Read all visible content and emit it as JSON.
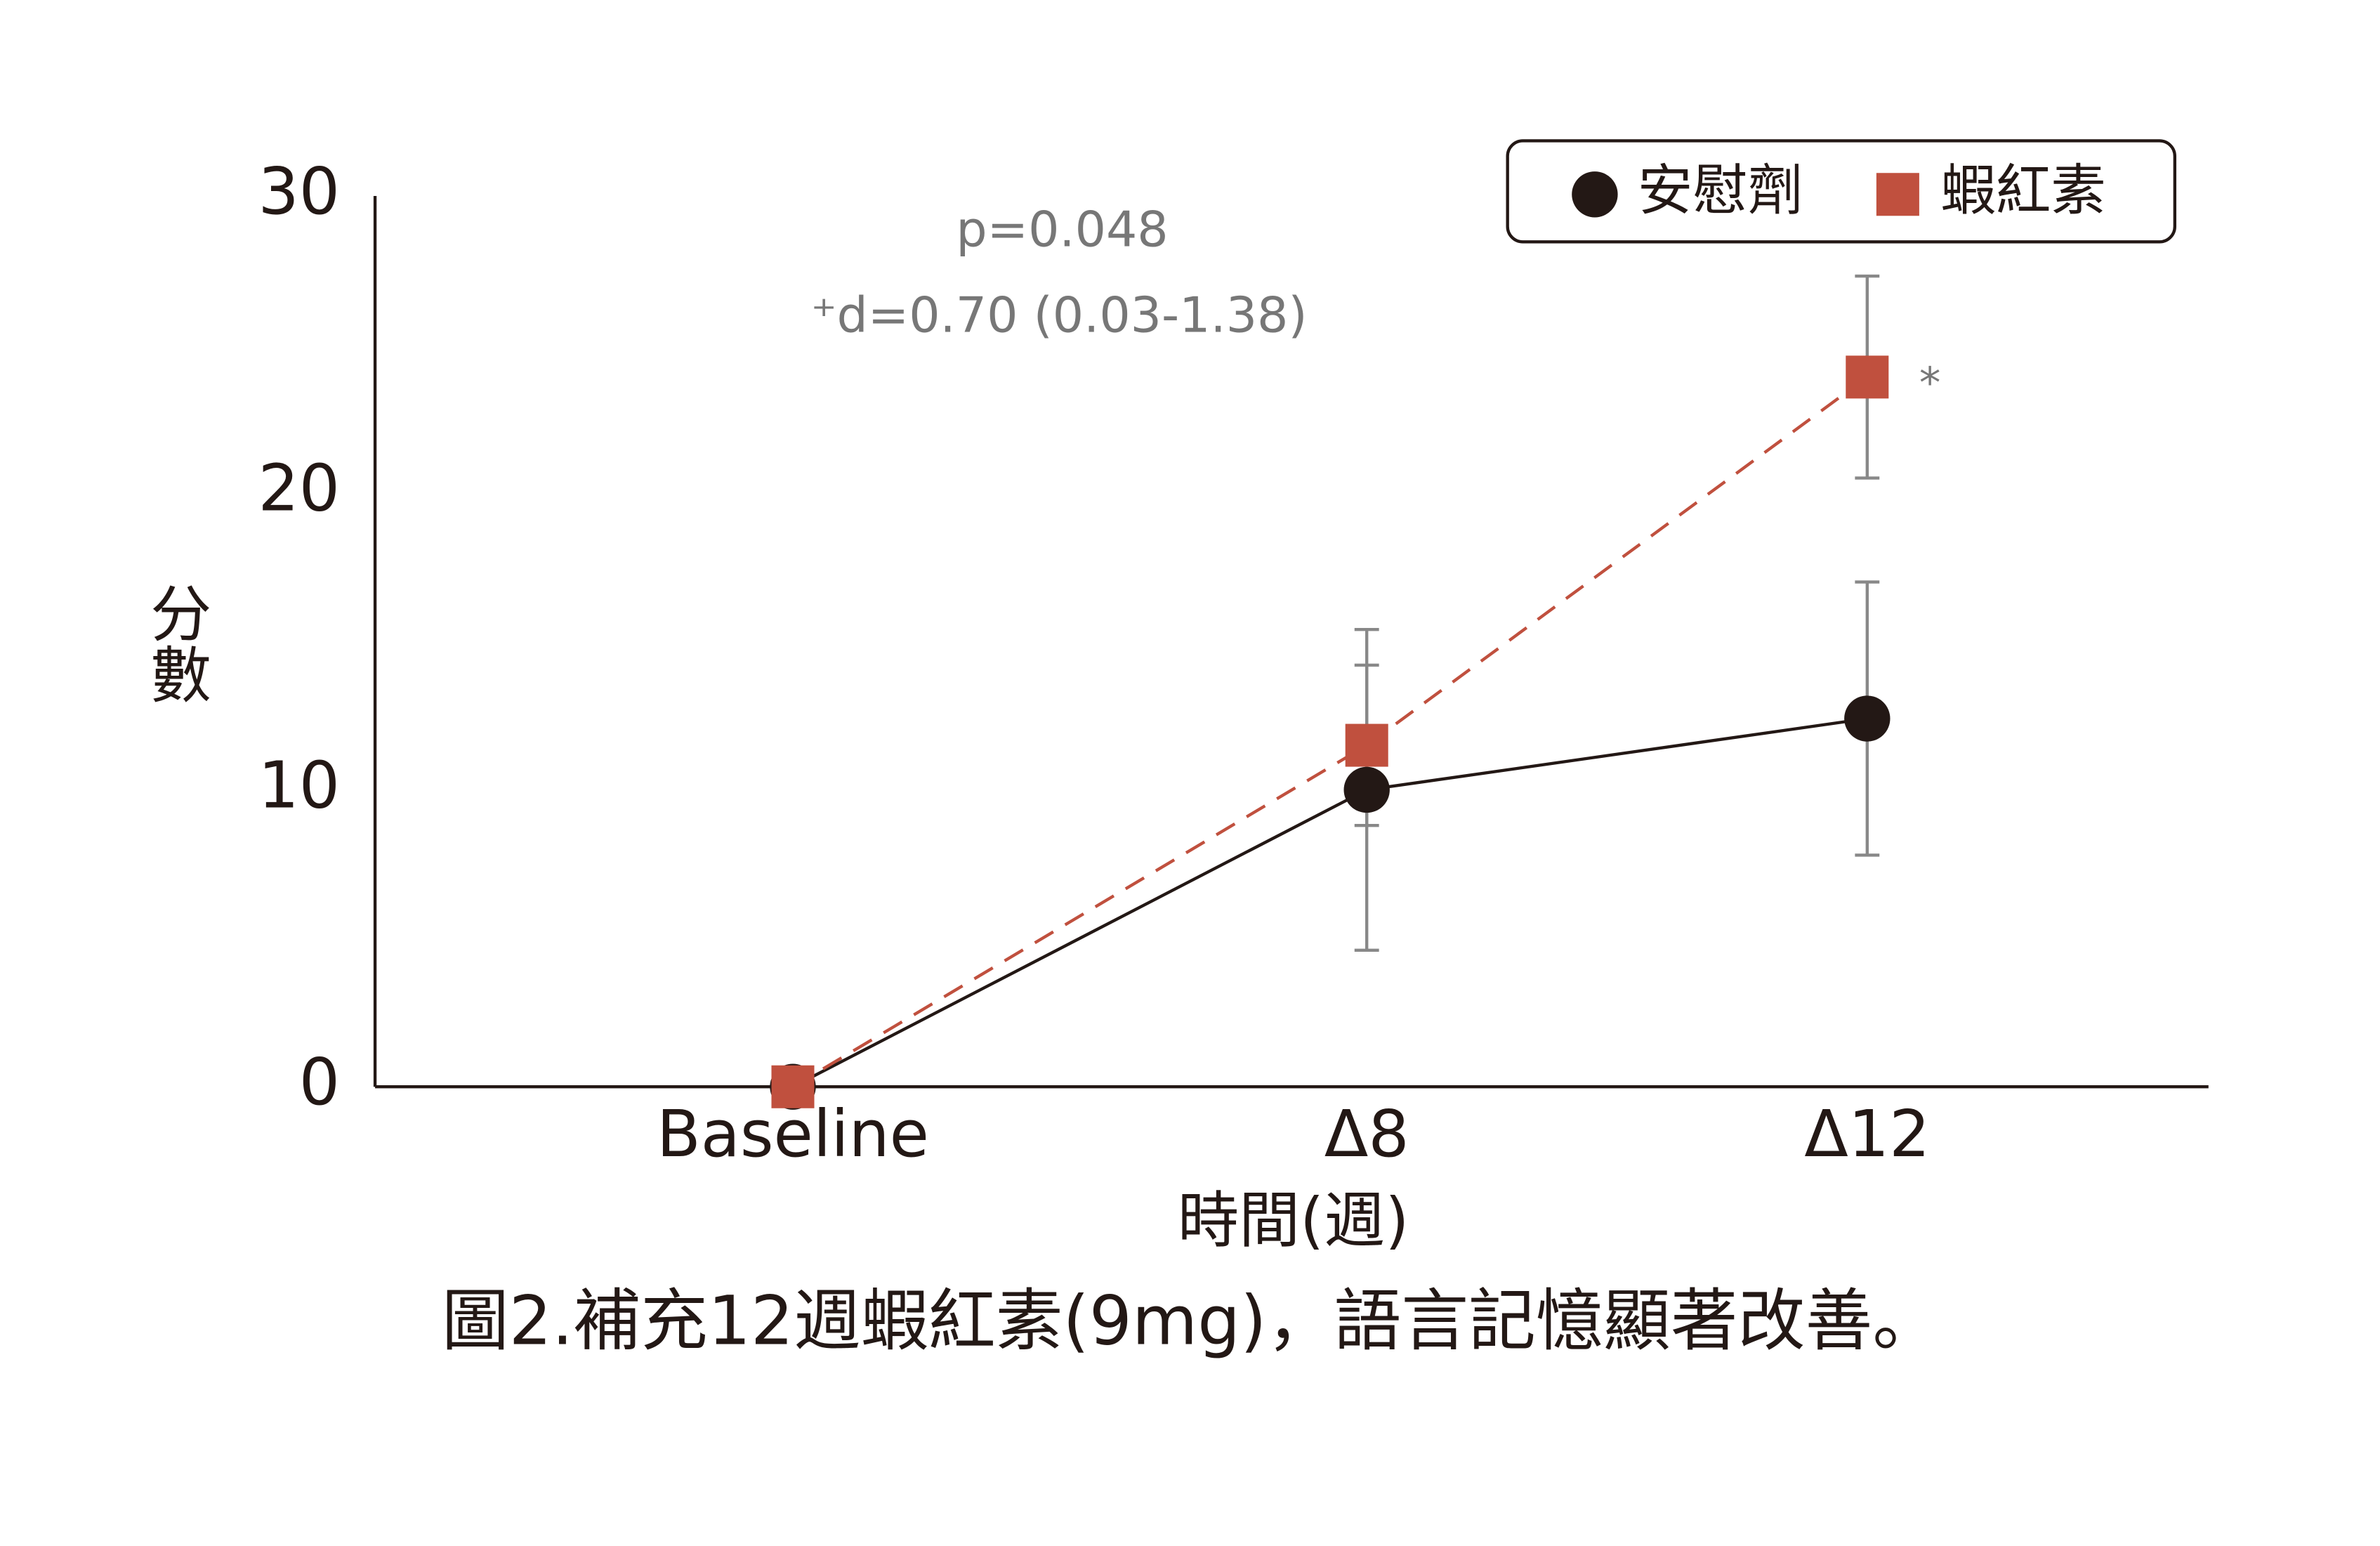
{
  "chart_data": {
    "type": "line",
    "ylabel": "分數",
    "xlabel": "時間(週)",
    "caption": "圖2.補充12週蝦紅素(9mg)，語言記憶顯著改善。",
    "annotations": [
      "p=0.048",
      "⁺d=0.70 (0.03-1.38)",
      "*"
    ],
    "categories": [
      "Baseline",
      "Δ8",
      "Δ12"
    ],
    "ylim": [
      0,
      30
    ],
    "yticks": [
      0,
      10,
      20,
      30
    ],
    "series": [
      {
        "name": "安慰劑",
        "color": "#231815",
        "marker": "circle",
        "dashed": false,
        "values": [
          0,
          10.0,
          12.4
        ],
        "errors": [
          null,
          5.4,
          4.6
        ]
      },
      {
        "name": "蝦紅素",
        "color": "#c0503e",
        "marker": "square",
        "dashed": true,
        "values": [
          0,
          11.5,
          23.9
        ],
        "errors": [
          null,
          2.7,
          3.4
        ]
      }
    ]
  }
}
